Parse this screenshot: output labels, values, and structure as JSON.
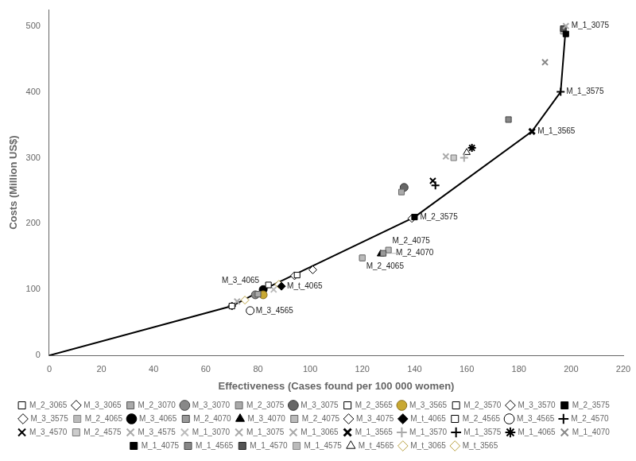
{
  "chart_data": {
    "type": "scatter",
    "xlabel": "Effectiveness (Cases found per 100 000 women)",
    "ylabel": "Costs (Million US$)",
    "xlim": [
      0,
      220
    ],
    "ylim": [
      0,
      525
    ],
    "xticks": [
      0,
      20,
      40,
      60,
      80,
      100,
      120,
      140,
      160,
      180,
      200,
      220
    ],
    "yticks": [
      0,
      100,
      200,
      300,
      400,
      500
    ],
    "grid": false,
    "legend": "bottom",
    "series": [
      {
        "type": "line",
        "color": "black",
        "line_style": "solid",
        "x": [
          0,
          70,
          82,
          140,
          185,
          196,
          198
        ],
        "values": [
          0,
          75,
          100,
          210,
          340,
          400,
          500
        ]
      },
      {
        "name": "M_2_3065",
        "x": [
          70
        ],
        "values": [
          75
        ],
        "marker": "square",
        "color": "white",
        "edgecolor": "black"
      },
      {
        "name": "M_3_3065",
        "x": [
          70
        ],
        "values": [
          75
        ],
        "marker": "diamond",
        "color": "white",
        "edgecolor": "black"
      },
      {
        "name": "M_2_3070",
        "x": [
          80
        ],
        "values": [
          93
        ],
        "marker": "square",
        "color": "#aaaaaa",
        "edgecolor": "#555555"
      },
      {
        "name": "M_3_3070",
        "x": [
          79
        ],
        "values": [
          92
        ],
        "marker": "circle",
        "color": "#888888",
        "edgecolor": "#444444"
      },
      {
        "name": "M_2_3075",
        "x": [
          135
        ],
        "values": [
          248
        ],
        "marker": "square",
        "color": "#aaaaaa",
        "edgecolor": "#666666"
      },
      {
        "name": "M_3_3075",
        "x": [
          136
        ],
        "values": [
          255
        ],
        "marker": "circle",
        "color": "#666666",
        "edgecolor": "#333333"
      },
      {
        "name": "M_2_3565",
        "x": [
          84
        ],
        "values": [
          107
        ],
        "marker": "square",
        "color": "white",
        "edgecolor": "black"
      },
      {
        "name": "M_3_3565",
        "x": [
          82
        ],
        "values": [
          92
        ],
        "marker": "circle",
        "color": "#c8a832",
        "edgecolor": "#8a7020"
      },
      {
        "name": "M_2_3570",
        "x": [
          95
        ],
        "values": [
          122
        ],
        "marker": "square",
        "color": "white",
        "edgecolor": "black"
      },
      {
        "name": "M_3_3570",
        "x": [
          94
        ],
        "values": [
          121
        ],
        "marker": "diamond",
        "color": "white",
        "edgecolor": "black"
      },
      {
        "name": "M_2_3575",
        "x": [
          140
        ],
        "values": [
          210
        ],
        "marker": "square",
        "color": "black",
        "edgecolor": "black"
      },
      {
        "name": "M_3_3575",
        "x": [
          139
        ],
        "values": [
          208
        ],
        "marker": "diamond",
        "color": "white",
        "edgecolor": "black"
      },
      {
        "name": "M_2_4065",
        "x": [
          120
        ],
        "values": [
          148
        ],
        "marker": "square",
        "color": "#bbbbbb",
        "edgecolor": "#888888"
      },
      {
        "name": "M_3_4065",
        "x": [
          82
        ],
        "values": [
          100
        ],
        "marker": "circle",
        "color": "black",
        "edgecolor": "black"
      },
      {
        "name": "M_2_4070",
        "x": [
          128
        ],
        "values": [
          155
        ],
        "marker": "square",
        "color": "#999999",
        "edgecolor": "#444444"
      },
      {
        "name": "M_3_4070",
        "x": [
          127
        ],
        "values": [
          154
        ],
        "marker": "triangle",
        "color": "black",
        "edgecolor": "black"
      },
      {
        "name": "M_2_4075",
        "x": [
          130
        ],
        "values": [
          160
        ],
        "marker": "square",
        "color": "#bbbbbb",
        "edgecolor": "#666666"
      },
      {
        "name": "M_3_4075",
        "x": [
          101
        ],
        "values": [
          130
        ],
        "marker": "diamond",
        "color": "white",
        "edgecolor": "black"
      },
      {
        "name": "M_t_4065",
        "x": [
          89
        ],
        "values": [
          105
        ],
        "marker": "diamond",
        "color": "black",
        "edgecolor": "black"
      },
      {
        "name": "M_2_4565",
        "x": [
          120
        ],
        "values": [
          148
        ],
        "marker": "square",
        "color": "white",
        "edgecolor": "black"
      },
      {
        "name": "M_3_4565",
        "x": [
          77
        ],
        "values": [
          68
        ],
        "marker": "circle",
        "color": "white",
        "edgecolor": "black"
      },
      {
        "name": "M_2_4570",
        "x": [
          148
        ],
        "values": [
          258
        ],
        "marker": "plus",
        "color": "black",
        "edgecolor": "black"
      },
      {
        "name": "M_3_4570",
        "x": [
          147
        ],
        "values": [
          265
        ],
        "marker": "x",
        "color": "black",
        "edgecolor": "black"
      },
      {
        "name": "M_2_4575",
        "x": [
          155
        ],
        "values": [
          300
        ],
        "marker": "square",
        "color": "#cccccc",
        "edgecolor": "#777777"
      },
      {
        "name": "M_3_4575",
        "x": [
          152
        ],
        "values": [
          302
        ],
        "marker": "x",
        "color": "#aaaaaa",
        "edgecolor": "#aaaaaa"
      },
      {
        "name": "M_1_3070",
        "x": [
          86
        ],
        "values": [
          100
        ],
        "marker": "x",
        "color": "#bbbbbb",
        "edgecolor": "#bbbbbb"
      },
      {
        "name": "M_1_3075",
        "x": [
          198
        ],
        "values": [
          500
        ],
        "marker": "x",
        "color": "#aaaaaa",
        "edgecolor": "#aaaaaa"
      },
      {
        "name": "M_1_3065",
        "x": [
          72
        ],
        "values": [
          82
        ],
        "marker": "x",
        "color": "#aaaaaa",
        "edgecolor": "#aaaaaa"
      },
      {
        "name": "M_1_3565",
        "x": [
          185
        ],
        "values": [
          340
        ],
        "marker": "x_filled",
        "color": "black",
        "edgecolor": "black"
      },
      {
        "name": "M_1_3570",
        "x": [
          159
        ],
        "values": [
          300
        ],
        "marker": "plus",
        "color": "#aaaaaa",
        "edgecolor": "#aaaaaa"
      },
      {
        "name": "M_1_3575",
        "x": [
          196
        ],
        "values": [
          400
        ],
        "marker": "plus",
        "color": "black",
        "edgecolor": "black"
      },
      {
        "name": "M_1_4065",
        "x": [
          162
        ],
        "values": [
          315
        ],
        "marker": "star",
        "color": "black",
        "edgecolor": "black"
      },
      {
        "name": "M_1_4070",
        "x": [
          190
        ],
        "values": [
          445
        ],
        "marker": "x",
        "color": "#888888",
        "edgecolor": "#888888"
      },
      {
        "name": "M_1_4075",
        "x": [
          198
        ],
        "values": [
          488
        ],
        "marker": "square",
        "color": "black",
        "edgecolor": "black"
      },
      {
        "name": "M_1_4565",
        "x": [
          176
        ],
        "values": [
          358
        ],
        "marker": "square",
        "color": "#888888",
        "edgecolor": "#444444"
      },
      {
        "name": "M_1_4570",
        "x": [
          197
        ],
        "values": [
          496
        ],
        "marker": "square",
        "color": "#555555",
        "edgecolor": "#222222"
      },
      {
        "name": "M_1_4575",
        "x": [
          197
        ],
        "values": [
          492
        ],
        "marker": "square",
        "color": "#bbbbbb",
        "edgecolor": "#888888"
      },
      {
        "name": "M_t_4565",
        "x": [
          160
        ],
        "values": [
          308
        ],
        "marker": "triangle",
        "color": "white",
        "edgecolor": "black"
      },
      {
        "name": "M_t_3065",
        "x": [
          75
        ],
        "values": [
          84
        ],
        "marker": "diamond",
        "color": "white",
        "edgecolor": "#b8a040"
      },
      {
        "name": "M_t_3565",
        "x": [
          88
        ],
        "values": [
          108
        ],
        "marker": "diamond",
        "color": "white",
        "edgecolor": "#b8a040"
      }
    ],
    "annotations": [
      {
        "text": "M_3_4565",
        "x": 77,
        "y": 68
      },
      {
        "text": "M_3_4065",
        "x": 82,
        "y": 100
      },
      {
        "text": "M_t_4065",
        "x": 89,
        "y": 105
      },
      {
        "text": "M_2_4065",
        "x": 120,
        "y": 148
      },
      {
        "text": "M_2_4070",
        "x": 128,
        "y": 155
      },
      {
        "text": "M_2_4075",
        "x": 130,
        "y": 160
      },
      {
        "text": "M_2_3575",
        "x": 140,
        "y": 210
      },
      {
        "text": "M_1_3565",
        "x": 185,
        "y": 340
      },
      {
        "text": "M_1_3575",
        "x": 196,
        "y": 400
      },
      {
        "text": "M_1_3075",
        "x": 198,
        "y": 500
      }
    ]
  }
}
